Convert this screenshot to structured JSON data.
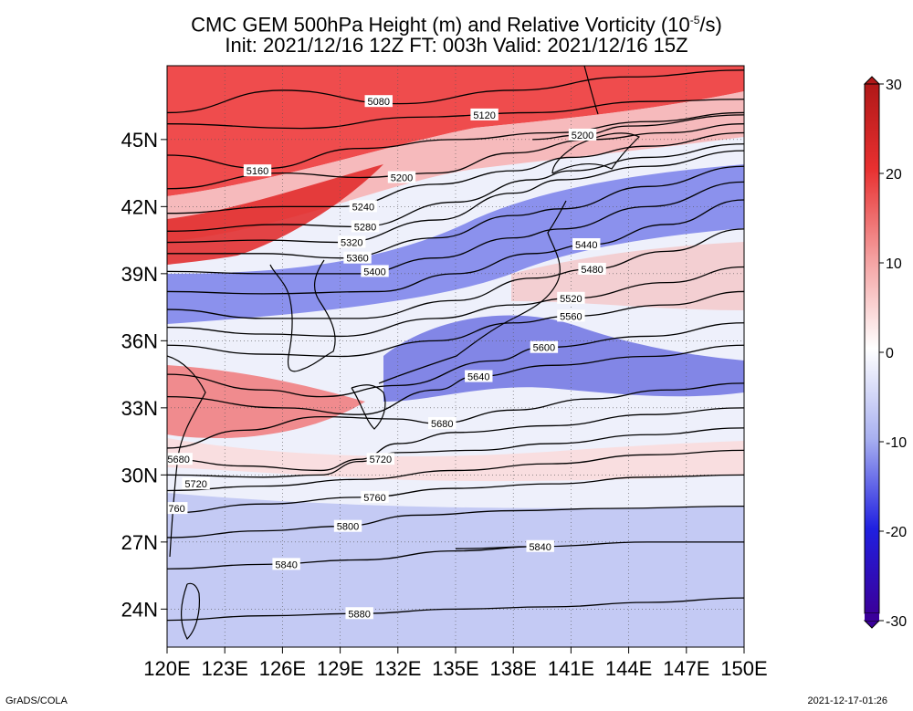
{
  "title": {
    "line1_pre": "CMC GEM 500hPa Height (m) and Relative Vorticity (10",
    "line1_sup": "-5",
    "line1_post": "/s)",
    "line2": "Init: 2021/12/16 12Z  FT: 003h  Valid: 2021/12/16 15Z"
  },
  "map": {
    "lon_labels": [
      "120E",
      "123E",
      "126E",
      "129E",
      "132E",
      "135E",
      "138E",
      "141E",
      "144E",
      "147E",
      "150E"
    ],
    "lat_labels": [
      "45N",
      "42N",
      "39N",
      "36N",
      "33N",
      "30N",
      "27N",
      "24N"
    ],
    "contours": [
      {
        "value": "5080",
        "label": "5080",
        "points": [
          [
            120,
            46.2
          ],
          [
            126,
            47.2
          ],
          [
            132,
            46.6
          ],
          [
            138,
            47.2
          ],
          [
            144,
            47.8
          ],
          [
            150,
            48.1
          ]
        ],
        "label_pos": [
          131,
          46.7
        ]
      },
      {
        "value": "5120",
        "label": "5120",
        "points": [
          [
            120,
            45.7
          ],
          [
            127,
            45.5
          ],
          [
            133,
            46.0
          ],
          [
            139,
            46.2
          ],
          [
            145,
            46.7
          ],
          [
            150,
            46.8
          ]
        ],
        "label_pos": [
          136.5,
          46.1
        ]
      },
      {
        "value": "5160",
        "label": "5160",
        "points": [
          [
            120,
            44.3
          ],
          [
            125,
            43.7
          ],
          [
            130,
            44.6
          ],
          [
            135,
            45.0
          ],
          [
            140,
            45.3
          ],
          [
            145,
            45.8
          ],
          [
            150,
            46.2
          ]
        ],
        "label_pos": [
          124.7,
          43.6
        ]
      },
      {
        "value": "5200",
        "label": "5200",
        "points": [
          [
            120,
            42.8
          ],
          [
            126,
            43.5
          ],
          [
            130,
            43.3
          ],
          [
            134,
            43.5
          ],
          [
            138,
            44.4
          ],
          [
            142,
            45.0
          ],
          [
            146,
            45.3
          ],
          [
            150,
            45.7
          ]
        ],
        "label_pos": [
          132.2,
          43.3
        ]
      },
      {
        "value": "5200b",
        "label": "5200",
        "points": [
          [
            139,
            45.0
          ],
          [
            141.5,
            45.2
          ],
          [
            144,
            45.6
          ],
          [
            150,
            46.1
          ]
        ],
        "label_pos": [
          141.6,
          45.2
        ]
      },
      {
        "value": "5240",
        "label": "5240",
        "points": [
          [
            120,
            41.7
          ],
          [
            126,
            42.0
          ],
          [
            129,
            42.0
          ],
          [
            134,
            43.0
          ],
          [
            138,
            43.6
          ],
          [
            141,
            44.2
          ],
          [
            145,
            44.7
          ],
          [
            150,
            45.3
          ]
        ],
        "label_pos": [
          130.2,
          42.0
        ]
      },
      {
        "value": "5280",
        "label": "5280",
        "points": [
          [
            120,
            40.9
          ],
          [
            126,
            41.2
          ],
          [
            130,
            41.1
          ],
          [
            135,
            42.2
          ],
          [
            139,
            43.2
          ],
          [
            141,
            43.6
          ],
          [
            145,
            44.2
          ],
          [
            150,
            44.8
          ]
        ],
        "label_pos": [
          130.3,
          41.1
        ]
      },
      {
        "value": "5320",
        "label": "5320",
        "points": [
          [
            120,
            40.4
          ],
          [
            125,
            40.5
          ],
          [
            129,
            40.4
          ],
          [
            134,
            41.4
          ],
          [
            138,
            42.6
          ],
          [
            140.5,
            43.2
          ],
          [
            145,
            43.8
          ],
          [
            150,
            44.5
          ]
        ],
        "label_pos": [
          129.6,
          40.4
        ]
      },
      {
        "value": "5360",
        "label": "5360",
        "points": [
          [
            120,
            39.9
          ],
          [
            125,
            39.9
          ],
          [
            129,
            39.7
          ],
          [
            134,
            40.6
          ],
          [
            138,
            41.6
          ],
          [
            140.5,
            41.9
          ],
          [
            145,
            42.9
          ],
          [
            150,
            43.8
          ]
        ],
        "label_pos": [
          129.9,
          39.7
        ]
      },
      {
        "value": "5400",
        "label": "5400",
        "points": [
          [
            120,
            39.1
          ],
          [
            125,
            39.0
          ],
          [
            130,
            39.0
          ],
          [
            134,
            39.7
          ],
          [
            138,
            40.6
          ],
          [
            140.5,
            41.0
          ],
          [
            145,
            42.0
          ],
          [
            150,
            43.1
          ]
        ],
        "label_pos": [
          130.8,
          39.1
        ]
      },
      {
        "value": "5440",
        "label": "5440",
        "points": [
          [
            120,
            38.2
          ],
          [
            125,
            38.1
          ],
          [
            131,
            38.2
          ],
          [
            135,
            39.0
          ],
          [
            139,
            39.9
          ],
          [
            142,
            40.3
          ],
          [
            146,
            41.2
          ],
          [
            150,
            42.3
          ]
        ],
        "label_pos": [
          141.8,
          40.3
        ]
      },
      {
        "value": "5480",
        "label": "5480",
        "points": [
          [
            120,
            37.4
          ],
          [
            125,
            37.0
          ],
          [
            130,
            37.0
          ],
          [
            135,
            37.8
          ],
          [
            139,
            38.8
          ],
          [
            142,
            39.2
          ],
          [
            146,
            40.0
          ],
          [
            150,
            41.0
          ]
        ],
        "label_pos": [
          142.1,
          39.2
        ]
      },
      {
        "value": "5520",
        "label": "5520",
        "points": [
          [
            120,
            36.6
          ],
          [
            125,
            36.3
          ],
          [
            129,
            36.2
          ],
          [
            134,
            37.0
          ],
          [
            138,
            37.6
          ],
          [
            141,
            37.9
          ],
          [
            146,
            38.6
          ],
          [
            150,
            39.3
          ]
        ],
        "label_pos": [
          141.0,
          37.9
        ]
      },
      {
        "value": "5560",
        "label": "5560",
        "points": [
          [
            120,
            35.8
          ],
          [
            125,
            35.4
          ],
          [
            129,
            35.3
          ],
          [
            134,
            36.0
          ],
          [
            138,
            36.8
          ],
          [
            141,
            37.1
          ],
          [
            146,
            37.6
          ],
          [
            150,
            38.2
          ]
        ],
        "label_pos": [
          141.0,
          37.1
        ]
      },
      {
        "value": "5600",
        "label": "5600",
        "points": [
          [
            120,
            34.5
          ],
          [
            125,
            33.8
          ],
          [
            128,
            33.5
          ],
          [
            132,
            34.0
          ],
          [
            137,
            35.1
          ],
          [
            139.5,
            35.7
          ],
          [
            145,
            36.2
          ],
          [
            150,
            36.8
          ]
        ],
        "label_pos": [
          139.6,
          35.7
        ]
      },
      {
        "value": "5640",
        "label": "5640",
        "points": [
          [
            120,
            33.5
          ],
          [
            126,
            33.0
          ],
          [
            130,
            32.7
          ],
          [
            134,
            33.8
          ],
          [
            136,
            34.4
          ],
          [
            140,
            34.9
          ],
          [
            145,
            35.3
          ],
          [
            150,
            35.8
          ]
        ],
        "label_pos": [
          136.2,
          34.4
        ]
      },
      {
        "value": "5680",
        "label": "5680",
        "points": [
          [
            120,
            31.2
          ],
          [
            124,
            32.0
          ],
          [
            128,
            32.6
          ],
          [
            132,
            32.5
          ],
          [
            134,
            32.3
          ],
          [
            138,
            32.9
          ],
          [
            142,
            33.4
          ],
          [
            146,
            33.8
          ],
          [
            150,
            34.1
          ]
        ],
        "label_pos": [
          134.3,
          32.3
        ]
      },
      {
        "value": "5680b",
        "label": "5680",
        "points": [
          [
            120,
            30.7
          ],
          [
            124,
            30.4
          ],
          [
            128,
            30.2
          ],
          [
            130,
            30.7
          ],
          [
            132,
            31.4
          ],
          [
            135,
            31.9
          ],
          [
            140,
            32.2
          ],
          [
            145,
            32.7
          ],
          [
            150,
            33.0
          ]
        ],
        "label_pos": [
          120.6,
          30.7
        ]
      },
      {
        "value": "5720",
        "label": "5720",
        "points": [
          [
            120,
            30.0
          ],
          [
            125,
            29.9
          ],
          [
            128,
            30.0
          ],
          [
            130,
            30.6
          ],
          [
            132,
            31.0
          ],
          [
            136,
            31.1
          ],
          [
            140,
            31.4
          ],
          [
            145,
            31.8
          ],
          [
            150,
            32.1
          ]
        ],
        "label_pos": [
          131.1,
          30.7
        ]
      },
      {
        "value": "5720b",
        "label": "5720",
        "points": [
          [
            120,
            29.3
          ],
          [
            125,
            29.5
          ],
          [
            130,
            29.8
          ],
          [
            135,
            30.2
          ],
          [
            140,
            30.5
          ],
          [
            145,
            30.9
          ],
          [
            150,
            31.1
          ]
        ],
        "label_pos": [
          121.5,
          29.6
        ]
      },
      {
        "value": "5760",
        "label": "5760",
        "points": [
          [
            120,
            28.3
          ],
          [
            125,
            28.7
          ],
          [
            130,
            29.0
          ],
          [
            135,
            29.4
          ],
          [
            140,
            29.6
          ],
          [
            145,
            29.9
          ],
          [
            150,
            30.0
          ]
        ],
        "label_pos": [
          130.8,
          29.0
        ]
      },
      {
        "value": "5760b",
        "label": "760",
        "points": [
          [
            120,
            28.3
          ],
          [
            121,
            28.5
          ]
        ],
        "label_pos": [
          120.5,
          28.5
        ]
      },
      {
        "value": "5800",
        "label": "5800",
        "points": [
          [
            120,
            27.2
          ],
          [
            125,
            27.5
          ],
          [
            129,
            27.7
          ],
          [
            133,
            28.2
          ],
          [
            138,
            28.4
          ],
          [
            143,
            28.5
          ],
          [
            150,
            28.6
          ]
        ],
        "label_pos": [
          129.4,
          27.7
        ]
      },
      {
        "value": "5840",
        "label": "5840",
        "points": [
          [
            120,
            25.8
          ],
          [
            125,
            26.0
          ],
          [
            130,
            26.2
          ],
          [
            135,
            26.6
          ],
          [
            139.4,
            26.8
          ],
          [
            145,
            27.0
          ],
          [
            150,
            27.0
          ]
        ],
        "label_pos": [
          126.2,
          26.0
        ]
      },
      {
        "value": "5840b",
        "label": "5840",
        "points": [
          [
            135,
            26.7
          ],
          [
            139.4,
            26.8
          ]
        ],
        "label_pos": [
          139.4,
          26.8
        ]
      },
      {
        "value": "5880",
        "label": "5880",
        "points": [
          [
            120,
            23.5
          ],
          [
            125,
            23.7
          ],
          [
            130,
            23.8
          ],
          [
            135,
            24.0
          ],
          [
            140,
            24.1
          ],
          [
            145,
            24.3
          ],
          [
            150,
            24.5
          ]
        ],
        "label_pos": [
          130.0,
          23.8
        ]
      }
    ]
  },
  "colorbar": {
    "ticks": [
      "30",
      "20",
      "10",
      "0",
      "-10",
      "-20",
      "-30"
    ],
    "colors": {
      "dark_red": "#b01818",
      "red": "#e83030",
      "pink": "#f4a0a0",
      "white": "#ffffff",
      "light_blue": "#a8b0f0",
      "blue": "#2020e0",
      "dark_blue": "#3a009a"
    }
  },
  "footer": {
    "left": "GrADS/COLA",
    "right": "2021-12-17-01:26"
  }
}
